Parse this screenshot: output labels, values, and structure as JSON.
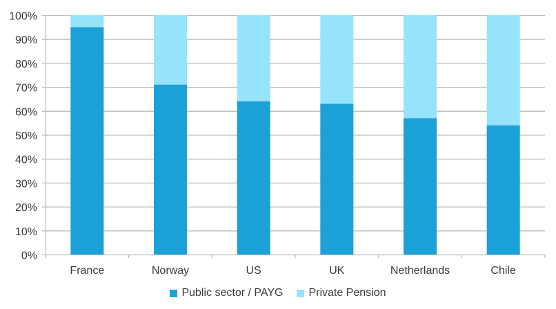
{
  "chart_data": {
    "type": "bar",
    "stacked": true,
    "title": "",
    "xlabel": "",
    "ylabel": "",
    "ylim": [
      0,
      100
    ],
    "yticks": [
      "0%",
      "10%",
      "20%",
      "30%",
      "40%",
      "50%",
      "60%",
      "70%",
      "80%",
      "90%",
      "100%"
    ],
    "grid": true,
    "legend_position": "bottom",
    "categories": [
      "France",
      "Norway",
      "US",
      "UK",
      "Netherlands",
      "Chile"
    ],
    "series": [
      {
        "name": "Public sector / PAYG",
        "color": "#1ba1d8",
        "values": [
          95,
          71,
          64,
          63,
          57,
          54
        ]
      },
      {
        "name": "Private Pension",
        "color": "#96e3fc",
        "values": [
          5,
          29,
          36,
          37,
          43,
          46
        ]
      }
    ]
  }
}
